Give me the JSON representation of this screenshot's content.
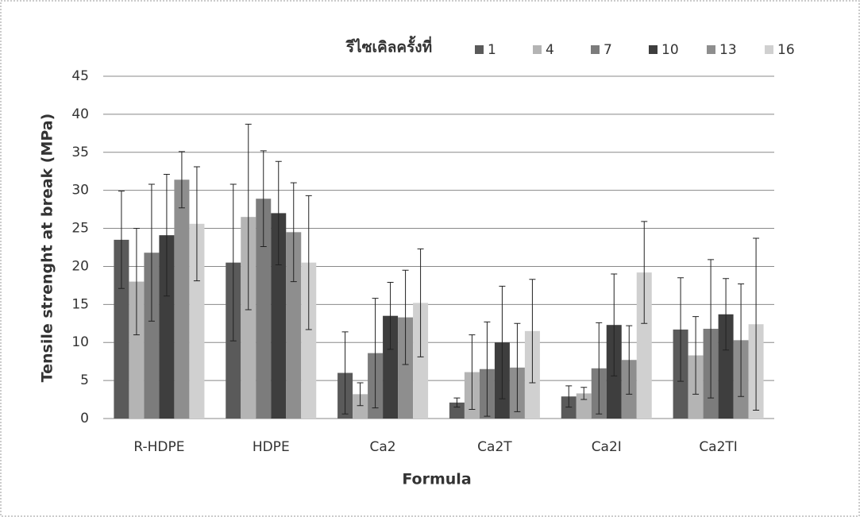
{
  "chart_data": {
    "type": "bar",
    "legend_title": "รีไซเคิลครั้งที่",
    "x_label": "Formula",
    "y_label": "Tensile strenght at break (MPa)",
    "categories": [
      "R-HDPE",
      "HDPE",
      "Ca2",
      "Ca2T",
      "Ca2I",
      "Ca2TI"
    ],
    "series": [
      {
        "name": "1",
        "color": "#5a5a5a",
        "values": [
          23.5,
          20.5,
          6,
          2.1,
          2.9,
          11.7
        ],
        "errors": [
          6.4,
          10.3,
          5.4,
          0.6,
          1.4,
          6.8
        ]
      },
      {
        "name": "4",
        "color": "#b4b4b4",
        "values": [
          18,
          26.5,
          3.2,
          6.1,
          3.3,
          8.3
        ],
        "errors": [
          7,
          12.2,
          1.5,
          4.9,
          0.8,
          5.1
        ]
      },
      {
        "name": "7",
        "color": "#7c7c7c",
        "values": [
          21.8,
          28.9,
          8.6,
          6.5,
          6.6,
          11.8
        ],
        "errors": [
          9,
          6.3,
          7.2,
          6.2,
          6,
          9.1
        ]
      },
      {
        "name": "10",
        "color": "#3e3e3e",
        "values": [
          24.1,
          27,
          13.5,
          10,
          12.3,
          13.7
        ],
        "errors": [
          8,
          6.8,
          4.4,
          7.4,
          6.7,
          4.7
        ]
      },
      {
        "name": "13",
        "color": "#8e8e8e",
        "values": [
          31.4,
          24.5,
          13.3,
          6.7,
          7.7,
          10.3
        ],
        "errors": [
          3.7,
          6.5,
          6.2,
          5.8,
          4.5,
          7.4
        ]
      },
      {
        "name": "16",
        "color": "#d0d0d0",
        "values": [
          25.6,
          20.5,
          15.2,
          11.5,
          19.2,
          12.4
        ],
        "errors": [
          7.5,
          8.8,
          7.1,
          6.8,
          6.7,
          11.3
        ]
      }
    ],
    "ylim": [
      0,
      45
    ],
    "yticks": [
      0,
      5,
      10,
      15,
      20,
      25,
      30,
      35,
      40,
      45
    ],
    "grid": true
  }
}
